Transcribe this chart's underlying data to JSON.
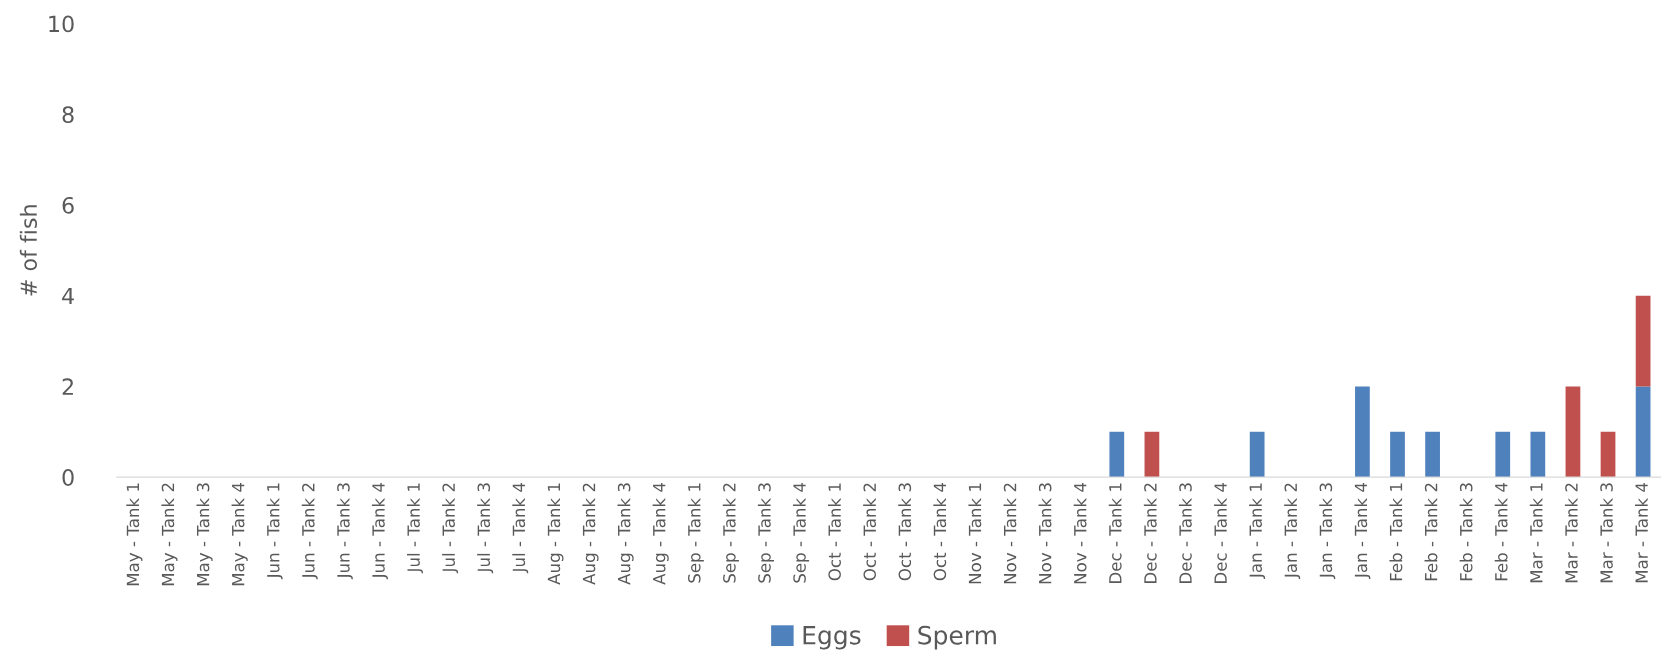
{
  "chart_data": {
    "type": "bar",
    "stacked": true,
    "ylabel": "# of fish",
    "categories": [
      "May - Tank 1",
      "May - Tank 2",
      "May - Tank 3",
      "May - Tank 4",
      "Jun - Tank 1",
      "Jun - Tank 2",
      "Jun - Tank 3",
      "Jun - Tank 4",
      "Jul - Tank 1",
      "Jul - Tank 2",
      "Jul - Tank 3",
      "Jul - Tank 4",
      "Aug - Tank 1",
      "Aug - Tank 2",
      "Aug - Tank 3",
      "Aug - Tank 4",
      "Sep - Tank 1",
      "Sep - Tank 2",
      "Sep - Tank 3",
      "Sep - Tank 4",
      "Oct - Tank 1",
      "Oct - Tank 2",
      "Oct - Tank 3",
      "Oct - Tank 4",
      "Nov - Tank 1",
      "Nov - Tank 2",
      "Nov - Tank 3",
      "Nov - Tank 4",
      "Dec - Tank 1",
      "Dec - Tank 2",
      "Dec - Tank 3",
      "Dec - Tank 4",
      "Jan - Tank 1",
      "Jan - Tank 2",
      "Jan - Tank 3",
      "Jan - Tank 4",
      "Feb - Tank 1",
      "Feb - Tank 2",
      "Feb - Tank 3",
      "Feb - Tank 4",
      "Mar - Tank 1",
      "Mar - Tank 2",
      "Mar - Tank 3",
      "Mar - Tank 4"
    ],
    "series": [
      {
        "name": "Eggs",
        "color": "#4f81bd",
        "values": [
          0,
          0,
          0,
          0,
          0,
          0,
          0,
          0,
          0,
          0,
          0,
          0,
          0,
          0,
          0,
          0,
          0,
          0,
          0,
          0,
          0,
          0,
          0,
          0,
          0,
          0,
          0,
          0,
          1,
          0,
          0,
          0,
          1,
          0,
          0,
          2,
          1,
          1,
          0,
          1,
          1,
          0,
          0,
          2
        ]
      },
      {
        "name": "Sperm",
        "color": "#c0504d",
        "values": [
          0,
          0,
          0,
          0,
          0,
          0,
          0,
          0,
          0,
          0,
          0,
          0,
          0,
          0,
          0,
          0,
          0,
          0,
          0,
          0,
          0,
          0,
          0,
          0,
          0,
          0,
          0,
          0,
          0,
          1,
          0,
          0,
          0,
          0,
          0,
          0,
          0,
          0,
          0,
          0,
          0,
          2,
          1,
          2
        ]
      }
    ],
    "ylim": [
      0,
      10
    ],
    "yticks": [
      0,
      2,
      4,
      6,
      8,
      10
    ],
    "grid": false,
    "legend": "bottom"
  }
}
